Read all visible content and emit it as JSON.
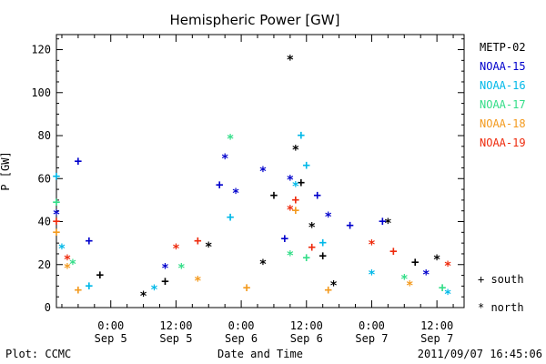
{
  "chart_data": {
    "type": "scatter",
    "title": "Hemispheric Power [GW]",
    "ylabel": "P [GW]",
    "xlabel": "Date and Time",
    "xlim": [
      "2011-09-04T14:00",
      "2011-09-07T17:00"
    ],
    "ylim": [
      0,
      127
    ],
    "yticks": [
      0,
      20,
      40,
      60,
      80,
      100,
      120
    ],
    "xticks": [
      {
        "at": "2011-09-05T00:00",
        "time": "0:00",
        "date": "Sep 5"
      },
      {
        "at": "2011-09-05T12:00",
        "time": "12:00",
        "date": "Sep 5"
      },
      {
        "at": "2011-09-06T00:00",
        "time": "0:00",
        "date": "Sep 6"
      },
      {
        "at": "2011-09-06T12:00",
        "time": "12:00",
        "date": "Sep 6"
      },
      {
        "at": "2011-09-07T00:00",
        "time": "0:00",
        "date": "Sep 7"
      },
      {
        "at": "2011-09-07T12:00",
        "time": "12:00",
        "date": "Sep 7"
      }
    ],
    "grid": false,
    "legend_position": "right",
    "marker_legend": [
      {
        "symbol": "+",
        "label": "south"
      },
      {
        "symbol": "*",
        "label": "north"
      }
    ],
    "series": [
      {
        "name": "METP-02",
        "color": "#000000",
        "points": [
          {
            "x": "2011-09-04T22:00",
            "y": 15,
            "m": "+"
          },
          {
            "x": "2011-09-05T06:00",
            "y": 5,
            "m": "*"
          },
          {
            "x": "2011-09-05T10:00",
            "y": 12,
            "m": "+"
          },
          {
            "x": "2011-09-05T18:00",
            "y": 28,
            "m": "*"
          },
          {
            "x": "2011-09-06T04:00",
            "y": 20,
            "m": "*"
          },
          {
            "x": "2011-09-06T06:00",
            "y": 52,
            "m": "+"
          },
          {
            "x": "2011-09-06T09:00",
            "y": 115,
            "m": "*"
          },
          {
            "x": "2011-09-06T10:00",
            "y": 73,
            "m": "*"
          },
          {
            "x": "2011-09-06T11:00",
            "y": 58,
            "m": "+"
          },
          {
            "x": "2011-09-06T13:00",
            "y": 37,
            "m": "*"
          },
          {
            "x": "2011-09-06T15:00",
            "y": 24,
            "m": "+"
          },
          {
            "x": "2011-09-06T17:00",
            "y": 10,
            "m": "*"
          },
          {
            "x": "2011-09-07T03:00",
            "y": 39,
            "m": "*"
          },
          {
            "x": "2011-09-07T08:00",
            "y": 21,
            "m": "+"
          },
          {
            "x": "2011-09-07T12:00",
            "y": 22,
            "m": "*"
          }
        ]
      },
      {
        "name": "NOAA-15",
        "color": "#0000cc",
        "points": [
          {
            "x": "2011-09-04T14:00",
            "y": 43,
            "m": "*"
          },
          {
            "x": "2011-09-04T18:00",
            "y": 68,
            "m": "+"
          },
          {
            "x": "2011-09-04T20:00",
            "y": 31,
            "m": "+"
          },
          {
            "x": "2011-09-05T10:00",
            "y": 18,
            "m": "*"
          },
          {
            "x": "2011-09-05T20:00",
            "y": 57,
            "m": "+"
          },
          {
            "x": "2011-09-05T21:00",
            "y": 69,
            "m": "*"
          },
          {
            "x": "2011-09-05T23:00",
            "y": 53,
            "m": "*"
          },
          {
            "x": "2011-09-06T04:00",
            "y": 63,
            "m": "*"
          },
          {
            "x": "2011-09-06T08:00",
            "y": 32,
            "m": "+"
          },
          {
            "x": "2011-09-06T09:00",
            "y": 59,
            "m": "*"
          },
          {
            "x": "2011-09-06T14:00",
            "y": 52,
            "m": "+"
          },
          {
            "x": "2011-09-06T16:00",
            "y": 42,
            "m": "*"
          },
          {
            "x": "2011-09-06T20:00",
            "y": 38,
            "m": "+"
          },
          {
            "x": "2011-09-07T02:00",
            "y": 40,
            "m": "+"
          },
          {
            "x": "2011-09-07T10:00",
            "y": 15,
            "m": "*"
          }
        ]
      },
      {
        "name": "NOAA-16",
        "color": "#00b8e8",
        "points": [
          {
            "x": "2011-09-04T14:00",
            "y": 61,
            "m": "+"
          },
          {
            "x": "2011-09-04T15:00",
            "y": 27,
            "m": "*"
          },
          {
            "x": "2011-09-04T20:00",
            "y": 10,
            "m": "+"
          },
          {
            "x": "2011-09-05T08:00",
            "y": 8,
            "m": "*"
          },
          {
            "x": "2011-09-05T22:00",
            "y": 42,
            "m": "+"
          },
          {
            "x": "2011-09-06T10:00",
            "y": 56,
            "m": "*"
          },
          {
            "x": "2011-09-06T11:00",
            "y": 80,
            "m": "+"
          },
          {
            "x": "2011-09-06T12:00",
            "y": 66,
            "m": "+"
          },
          {
            "x": "2011-09-06T15:00",
            "y": 30,
            "m": "+"
          },
          {
            "x": "2011-09-07T00:00",
            "y": 15,
            "m": "*"
          },
          {
            "x": "2011-09-07T14:00",
            "y": 6,
            "m": "*"
          }
        ]
      },
      {
        "name": "NOAA-17",
        "color": "#33dd88",
        "points": [
          {
            "x": "2011-09-04T14:00",
            "y": 49,
            "m": "+"
          },
          {
            "x": "2011-09-04T17:00",
            "y": 20,
            "m": "*"
          },
          {
            "x": "2011-09-05T13:00",
            "y": 18,
            "m": "*"
          },
          {
            "x": "2011-09-05T22:00",
            "y": 78,
            "m": "*"
          },
          {
            "x": "2011-09-06T09:00",
            "y": 24,
            "m": "*"
          },
          {
            "x": "2011-09-06T12:00",
            "y": 23,
            "m": "+"
          },
          {
            "x": "2011-09-07T06:00",
            "y": 13,
            "m": "*"
          },
          {
            "x": "2011-09-07T13:00",
            "y": 9,
            "m": "+"
          }
        ]
      },
      {
        "name": "NOAA-18",
        "color": "#f39a1e",
        "points": [
          {
            "x": "2011-09-04T14:00",
            "y": 35,
            "m": "+"
          },
          {
            "x": "2011-09-04T16:00",
            "y": 18,
            "m": "*"
          },
          {
            "x": "2011-09-04T18:00",
            "y": 8,
            "m": "+"
          },
          {
            "x": "2011-09-05T16:00",
            "y": 12,
            "m": "*"
          },
          {
            "x": "2011-09-06T01:00",
            "y": 9,
            "m": "+"
          },
          {
            "x": "2011-09-06T10:00",
            "y": 45,
            "m": "+"
          },
          {
            "x": "2011-09-06T16:00",
            "y": 8,
            "m": "+"
          },
          {
            "x": "2011-09-07T07:00",
            "y": 10,
            "m": "*"
          }
        ]
      },
      {
        "name": "NOAA-19",
        "color": "#ee2a0c",
        "points": [
          {
            "x": "2011-09-04T14:00",
            "y": 40,
            "m": "+"
          },
          {
            "x": "2011-09-04T16:00",
            "y": 22,
            "m": "*"
          },
          {
            "x": "2011-09-05T12:00",
            "y": 27,
            "m": "*"
          },
          {
            "x": "2011-09-05T16:00",
            "y": 31,
            "m": "+"
          },
          {
            "x": "2011-09-06T09:00",
            "y": 45,
            "m": "*"
          },
          {
            "x": "2011-09-06T10:00",
            "y": 50,
            "m": "+"
          },
          {
            "x": "2011-09-06T13:00",
            "y": 28,
            "m": "+"
          },
          {
            "x": "2011-09-07T00:00",
            "y": 29,
            "m": "*"
          },
          {
            "x": "2011-09-07T04:00",
            "y": 26,
            "m": "+"
          },
          {
            "x": "2011-09-07T14:00",
            "y": 19,
            "m": "*"
          }
        ]
      }
    ]
  },
  "footer": {
    "plot_credit": "Plot: CCMC",
    "timestamp": "2011/09/07 16:45:06"
  }
}
